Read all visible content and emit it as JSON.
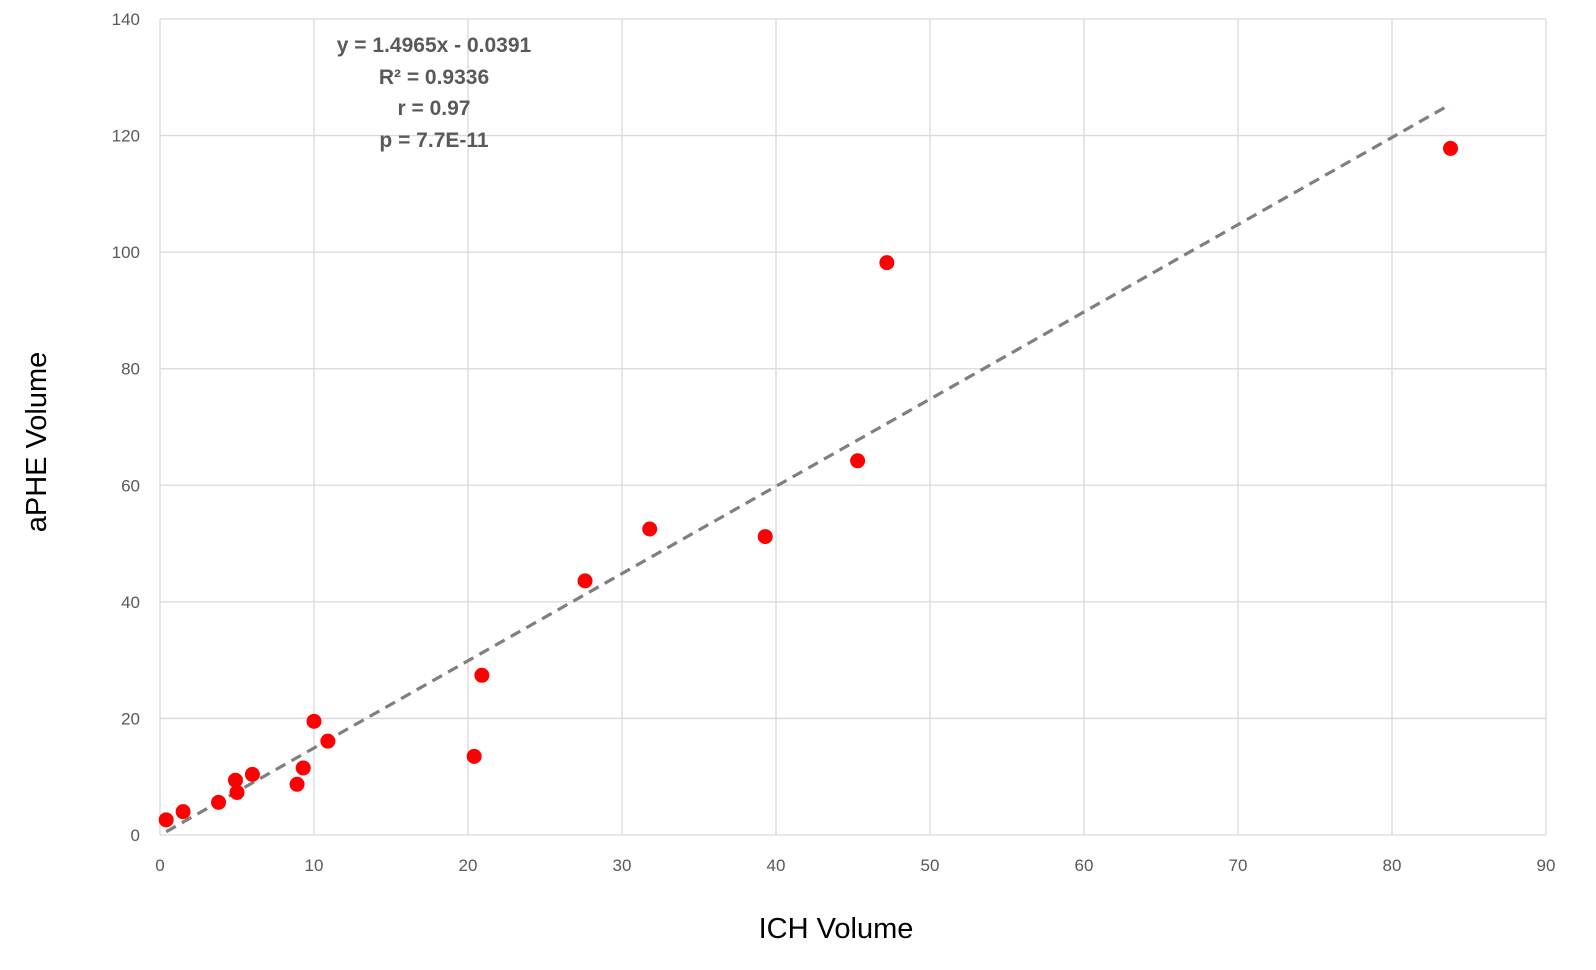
{
  "chart_data": {
    "type": "scatter",
    "title": "",
    "xlabel": "ICH Volume",
    "ylabel": "aPHE Volume",
    "xlim": [
      0,
      90
    ],
    "ylim": [
      0,
      140
    ],
    "x_ticks": [
      0,
      10,
      20,
      30,
      40,
      50,
      60,
      70,
      80,
      90
    ],
    "y_ticks": [
      0,
      20,
      40,
      60,
      80,
      100,
      120,
      140
    ],
    "x_tick_labels": [
      "0",
      "10",
      "20",
      "30",
      "40",
      "50",
      "60",
      "70",
      "80",
      "90"
    ],
    "y_tick_labels": [
      "0",
      "20",
      "40",
      "60",
      "80",
      "100",
      "120",
      "140"
    ],
    "grid": true,
    "legend": false,
    "series": [
      {
        "color": "#ff0000",
        "points": [
          {
            "x": 0.4,
            "y": 2.6
          },
          {
            "x": 1.5,
            "y": 4.0
          },
          {
            "x": 3.8,
            "y": 5.6
          },
          {
            "x": 4.9,
            "y": 9.4
          },
          {
            "x": 5.0,
            "y": 7.3
          },
          {
            "x": 6.0,
            "y": 10.4
          },
          {
            "x": 8.9,
            "y": 8.7
          },
          {
            "x": 9.3,
            "y": 11.5
          },
          {
            "x": 10.0,
            "y": 19.5
          },
          {
            "x": 10.9,
            "y": 16.1
          },
          {
            "x": 20.4,
            "y": 13.5
          },
          {
            "x": 20.9,
            "y": 27.4
          },
          {
            "x": 27.6,
            "y": 43.6
          },
          {
            "x": 31.8,
            "y": 52.5
          },
          {
            "x": 39.3,
            "y": 51.2
          },
          {
            "x": 45.3,
            "y": 64.2
          },
          {
            "x": 47.2,
            "y": 98.2
          },
          {
            "x": 83.8,
            "y": 117.8
          }
        ]
      }
    ],
    "trendline": {
      "slope": 1.4965,
      "intercept": -0.0391,
      "x_range": [
        0.4,
        83.8
      ],
      "color": "#7f7f7f",
      "style": "dashed"
    },
    "annotations": [
      "y = 1.4965x - 0.0391",
      "R² = 0.9336",
      "r = 0.97",
      "p = 7.7E-11"
    ],
    "colors": {
      "grid": "#d9d9d9",
      "points": "#ff0000",
      "trendline": "#7f7f7f",
      "text": "#595959"
    }
  }
}
